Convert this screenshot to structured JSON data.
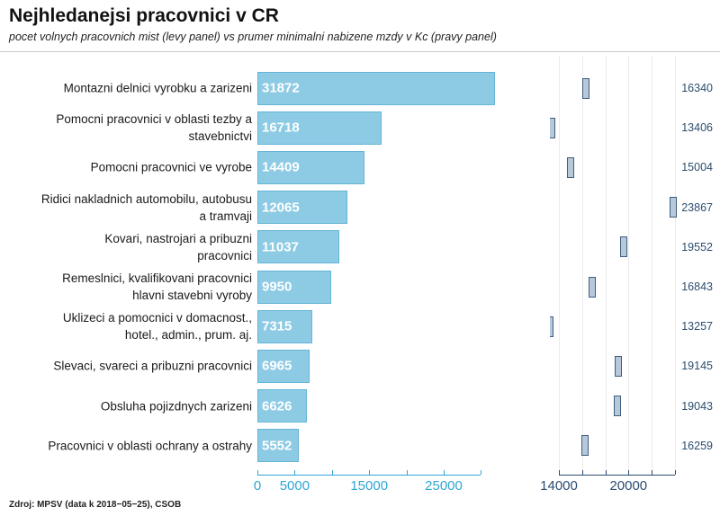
{
  "title": "Nejhledanejsi pracovnici v CR",
  "subtitle": "pocet volnych pracovnich mist (levy panel) vs prumer minimalni nabizene mzdy v Kc (pravy panel)",
  "source": "Zdroj: MPSV (data k 2018−05−25), CSOB",
  "colors": {
    "bar_fill": "#8dcbe4",
    "bar_border": "#64b5d6",
    "bar_value_text": "#ffffff",
    "left_axis": "#2fa6d4",
    "marker_fill": "#b7c8da",
    "marker_border": "#3f5d7d",
    "right_text": "#2b4d6f",
    "gridline": "#ebebeb"
  },
  "chart_data": {
    "type": "bar",
    "orientation": "horizontal",
    "panels": [
      "pocet volnych pracovnich mist",
      "prumer minimalni nabizene mzdy v Kc"
    ],
    "categories": [
      "Montazni delnici vyrobku a zarizeni",
      "Pomocni pracovnici v oblasti tezby a stavebnictvi",
      "Pomocni pracovnici ve vyrobe",
      "Ridici nakladnich automobilu, autobusu a tramvaji",
      "Kovari, nastrojari a pribuzni pracovnici",
      "Remeslnici, kvalifikovani pracovnici hlavni stavebni vyroby",
      "Uklizeci a pomocnici v domacnost., hotel., admin., prum. aj.",
      "Slevaci, svareci a pribuzni pracovnici",
      "Obsluha pojizdnych zarizeni",
      "Pracovnici v oblasti ochrany a ostrahy"
    ],
    "category_lines": [
      [
        "Montazni delnici vyrobku a zarizeni"
      ],
      [
        "Pomocni pracovnici v oblasti tezby a",
        "stavebnictvi"
      ],
      [
        "Pomocni pracovnici ve vyrobe"
      ],
      [
        "Ridici nakladnich automobilu, autobusu",
        "a tramvaji"
      ],
      [
        "Kovari, nastrojari a pribuzni",
        "pracovnici"
      ],
      [
        "Remeslnici, kvalifikovani pracovnici",
        "hlavni stavebni vyroby"
      ],
      [
        "Uklizeci a pomocnici v domacnost.,",
        "hotel., admin., prum. aj."
      ],
      [
        "Slevaci, svareci a pribuzni pracovnici"
      ],
      [
        "Obsluha pojizdnych zarizeni"
      ],
      [
        "Pracovnici v oblasti ochrany a ostrahy"
      ]
    ],
    "series": [
      {
        "name": "volna mista",
        "panel": "left",
        "values": [
          31872,
          16718,
          14409,
          12065,
          11037,
          9950,
          7315,
          6965,
          6626,
          5552
        ]
      },
      {
        "name": "prumer minimalni nabizene mzdy v Kc",
        "panel": "right",
        "values": [
          16340,
          13406,
          15004,
          23867,
          19552,
          16843,
          13257,
          19145,
          19043,
          16259
        ]
      }
    ],
    "left_axis": {
      "range": [
        0,
        30000
      ],
      "ticks": [
        0,
        5000,
        10000,
        15000,
        20000,
        25000,
        30000
      ],
      "label_values": [
        0,
        5000,
        15000,
        25000
      ],
      "labels": [
        "0",
        "5000",
        "15000",
        "25000"
      ]
    },
    "right_axis": {
      "range": [
        13200,
        24000
      ],
      "ticks": [
        14000,
        16000,
        18000,
        20000,
        22000,
        24000
      ],
      "label_values": [
        14000,
        20000
      ],
      "labels": [
        "14000",
        "20000"
      ],
      "grid": true
    }
  }
}
